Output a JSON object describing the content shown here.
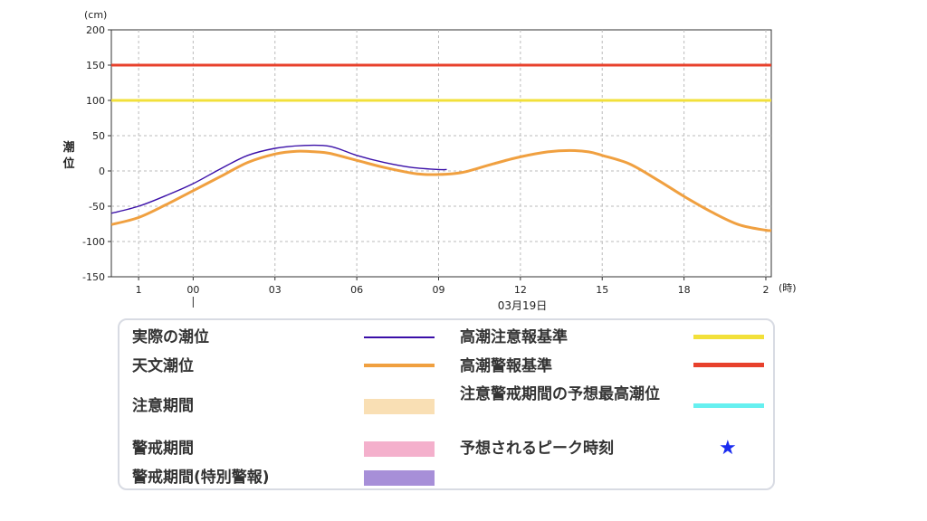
{
  "chart_data": {
    "type": "line",
    "ylabel": "潮位",
    "y_unit": "(cm)",
    "x_unit": "(時)",
    "date_label": "03月19日",
    "ylim": [
      -150,
      200
    ],
    "y_ticks": [
      -150,
      -100,
      -50,
      0,
      50,
      100,
      150,
      200
    ],
    "x_ticks": [
      {
        "t": -2,
        "label": "1"
      },
      {
        "t": 0,
        "label": "00"
      },
      {
        "t": 3,
        "label": "03"
      },
      {
        "t": 6,
        "label": "06"
      },
      {
        "t": 9,
        "label": "09"
      },
      {
        "t": 12,
        "label": "12"
      },
      {
        "t": 15,
        "label": "15"
      },
      {
        "t": 18,
        "label": "18"
      },
      {
        "t": 21,
        "label": "2"
      }
    ],
    "grid": true,
    "reference_lines": [
      {
        "name": "高潮警報基準",
        "value": 150,
        "color": "#e8412c"
      },
      {
        "name": "高潮注意報基準",
        "value": 100,
        "color": "#f2e03a"
      }
    ],
    "series": [
      {
        "name": "天文潮位",
        "color": "#f0a040",
        "x": [
          -3,
          -2,
          -1,
          0,
          1,
          2,
          3,
          3.8,
          4.5,
          5,
          6,
          7,
          8,
          8.5,
          9,
          9.5,
          10,
          11,
          12,
          13,
          13.8,
          14.5,
          15,
          16,
          17,
          18,
          19,
          20,
          21,
          21.2
        ],
        "y": [
          -76,
          -66,
          -48,
          -28,
          -8,
          12,
          24,
          28,
          27,
          25,
          15,
          5,
          -3,
          -5,
          -5,
          -4,
          -1,
          10,
          20,
          27,
          29,
          27,
          22,
          10,
          -12,
          -36,
          -58,
          -76,
          -84,
          -84
        ]
      },
      {
        "name": "実際の潮位",
        "color": "#3a0fa8",
        "x": [
          -3,
          -2,
          -1,
          0,
          1,
          2,
          3,
          4,
          5,
          6,
          7,
          8,
          9,
          9.3
        ],
        "y": [
          -60,
          -50,
          -35,
          -18,
          3,
          22,
          32,
          36,
          35,
          22,
          12,
          5,
          2,
          2
        ]
      }
    ]
  },
  "legend": {
    "actual": "実際の潮位",
    "astro": "天文潮位",
    "caution_period": "注意期間",
    "warning_period": "警戒期間",
    "warning_special": "警戒期間(特別警報)",
    "advisory_std": "高潮注意報基準",
    "warning_std": "高潮警報基準",
    "peak_forecast": "注意警戒期間の予想最高潮位",
    "peak_time": "予想されるピーク時刻",
    "colors": {
      "actual": "#3a0fa8",
      "astro": "#f0a040",
      "caution": "#f9dfb4",
      "warning": "#f4b0cc",
      "special": "#a78fd8",
      "advisory_std": "#f2e03a",
      "warning_std": "#e8412c",
      "peak": "#66f0f0",
      "star": "#1a2cf0"
    }
  }
}
